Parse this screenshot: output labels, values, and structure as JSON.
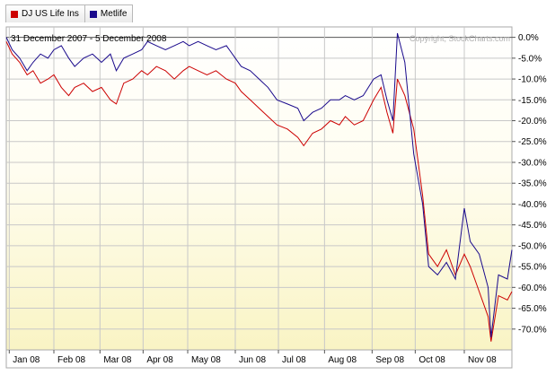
{
  "legend": [
    {
      "label": "DJ US Life Ins",
      "color": "#cc0000"
    },
    {
      "label": "Metlife",
      "color": "#1a0a8c"
    }
  ],
  "date_range": "31 December 2007 - 5 December 2008",
  "copyright": "Copyright, StockCharts.com",
  "chart_data": {
    "type": "line",
    "title": "",
    "subtitle": "31 December 2007 - 5 December 2008",
    "y_unit": "percent change",
    "ylim": [
      -75,
      2.5
    ],
    "y_ticks": [
      "0.0%",
      "-5.0%",
      "-10.0%",
      "-15.0%",
      "-20.0%",
      "-25.0%",
      "-30.0%",
      "-35.0%",
      "-40.0%",
      "-45.0%",
      "-50.0%",
      "-55.0%",
      "-60.0%",
      "-65.0%",
      "-70.0%"
    ],
    "y_tick_values": [
      0,
      -5,
      -10,
      -15,
      -20,
      -25,
      -30,
      -35,
      -40,
      -45,
      -50,
      -55,
      -60,
      -65,
      -70
    ],
    "x_ticks": [
      "Jan 08",
      "Feb 08",
      "Mar 08",
      "Apr 08",
      "May 08",
      "Jun 08",
      "Jul 08",
      "Aug 08",
      "Sep 08",
      "Oct 08",
      "Nov 08"
    ],
    "x_tick_dates": [
      "2008-01-02",
      "2008-02-01",
      "2008-03-03",
      "2008-04-01",
      "2008-05-01",
      "2008-06-02",
      "2008-07-01",
      "2008-08-01",
      "2008-09-02",
      "2008-10-01",
      "2008-11-03"
    ],
    "xlim": [
      "2007-12-31",
      "2008-12-05"
    ],
    "grid": true,
    "legend_position": "top-left",
    "series": [
      {
        "name": "DJ US Life Ins",
        "color": "#cc0000",
        "x": [
          "2007-12-31",
          "2008-01-04",
          "2008-01-09",
          "2008-01-14",
          "2008-01-18",
          "2008-01-23",
          "2008-01-28",
          "2008-02-01",
          "2008-02-06",
          "2008-02-11",
          "2008-02-15",
          "2008-02-21",
          "2008-02-27",
          "2008-03-04",
          "2008-03-10",
          "2008-03-14",
          "2008-03-19",
          "2008-03-25",
          "2008-03-31",
          "2008-04-04",
          "2008-04-10",
          "2008-04-16",
          "2008-04-22",
          "2008-04-28",
          "2008-05-02",
          "2008-05-08",
          "2008-05-14",
          "2008-05-20",
          "2008-05-27",
          "2008-06-02",
          "2008-06-06",
          "2008-06-12",
          "2008-06-18",
          "2008-06-24",
          "2008-06-30",
          "2008-07-07",
          "2008-07-14",
          "2008-07-18",
          "2008-07-24",
          "2008-07-30",
          "2008-08-05",
          "2008-08-11",
          "2008-08-15",
          "2008-08-21",
          "2008-08-27",
          "2008-09-03",
          "2008-09-08",
          "2008-09-12",
          "2008-09-16",
          "2008-09-19",
          "2008-09-24",
          "2008-09-30",
          "2008-10-06",
          "2008-10-10",
          "2008-10-16",
          "2008-10-22",
          "2008-10-28",
          "2008-11-03",
          "2008-11-07",
          "2008-11-13",
          "2008-11-19",
          "2008-11-21",
          "2008-11-26",
          "2008-12-02",
          "2008-12-05"
        ],
        "values": [
          -1,
          -4,
          -6,
          -9,
          -8,
          -11,
          -10,
          -9,
          -12,
          -14,
          -12,
          -11,
          -13,
          -12,
          -15,
          -16,
          -11,
          -10,
          -8,
          -9,
          -7,
          -8,
          -10,
          -8,
          -7,
          -8,
          -9,
          -8,
          -10,
          -11,
          -13,
          -15,
          -17,
          -19,
          -21,
          -22,
          -24,
          -26,
          -23,
          -22,
          -20,
          -21,
          -19,
          -21,
          -20,
          -15,
          -12,
          -18,
          -23,
          -10,
          -14,
          -22,
          -38,
          -52,
          -55,
          -51,
          -57,
          -52,
          -55,
          -61,
          -67,
          -73,
          -62,
          -63,
          -61
        ]
      },
      {
        "name": "Metlife",
        "color": "#1a0a8c",
        "x": [
          "2007-12-31",
          "2008-01-04",
          "2008-01-09",
          "2008-01-14",
          "2008-01-18",
          "2008-01-23",
          "2008-01-28",
          "2008-02-01",
          "2008-02-06",
          "2008-02-11",
          "2008-02-15",
          "2008-02-21",
          "2008-02-27",
          "2008-03-04",
          "2008-03-10",
          "2008-03-14",
          "2008-03-19",
          "2008-03-25",
          "2008-03-31",
          "2008-04-04",
          "2008-04-10",
          "2008-04-16",
          "2008-04-22",
          "2008-04-28",
          "2008-05-02",
          "2008-05-08",
          "2008-05-14",
          "2008-05-20",
          "2008-05-27",
          "2008-06-02",
          "2008-06-06",
          "2008-06-12",
          "2008-06-18",
          "2008-06-24",
          "2008-06-30",
          "2008-07-07",
          "2008-07-14",
          "2008-07-18",
          "2008-07-24",
          "2008-07-30",
          "2008-08-05",
          "2008-08-11",
          "2008-08-15",
          "2008-08-21",
          "2008-08-27",
          "2008-09-03",
          "2008-09-08",
          "2008-09-12",
          "2008-09-16",
          "2008-09-19",
          "2008-09-24",
          "2008-09-30",
          "2008-10-06",
          "2008-10-10",
          "2008-10-16",
          "2008-10-22",
          "2008-10-28",
          "2008-11-03",
          "2008-11-07",
          "2008-11-13",
          "2008-11-19",
          "2008-11-21",
          "2008-11-26",
          "2008-12-02",
          "2008-12-05"
        ],
        "values": [
          0,
          -3,
          -5,
          -8,
          -6,
          -4,
          -5,
          -3,
          -2,
          -5,
          -7,
          -5,
          -4,
          -6,
          -4,
          -8,
          -5,
          -4,
          -3,
          -1,
          -2,
          -3,
          -2,
          -1,
          -2,
          -1,
          -2,
          -3,
          -2,
          -5,
          -7,
          -8,
          -10,
          -12,
          -15,
          -16,
          -17,
          -20,
          -18,
          -17,
          -15,
          -15,
          -14,
          -15,
          -14,
          -10,
          -9,
          -15,
          -20,
          1,
          -6,
          -28,
          -40,
          -55,
          -57,
          -54,
          -58,
          -41,
          -49,
          -52,
          -60,
          -72,
          -57,
          -58,
          -51
        ]
      }
    ]
  }
}
